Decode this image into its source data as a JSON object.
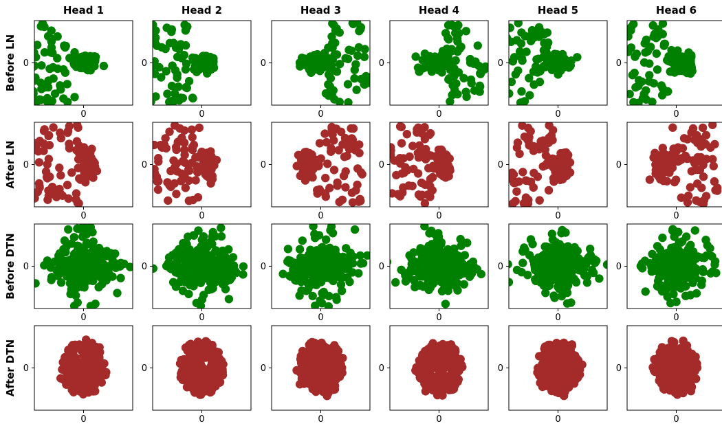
{
  "colors": {
    "green": "#008000",
    "brown": "#a52a2a"
  },
  "chart_data": {
    "type": "scatter",
    "grid": false,
    "columns": [
      "Head 1",
      "Head 2",
      "Head 3",
      "Head 4",
      "Head 5",
      "Head 6"
    ],
    "rows": [
      {
        "label": "Before LN",
        "color": "green",
        "shape": "scattered-left-dense-center",
        "xlim": [
          -1,
          1
        ],
        "ylim": [
          -1,
          1
        ],
        "xticks": [
          "0"
        ],
        "yticks": [
          "0"
        ]
      },
      {
        "label": "After LN",
        "color": "brown",
        "shape": "ring-left-dense-right",
        "xlim": [
          -1,
          1
        ],
        "ylim": [
          -1,
          1
        ],
        "xticks": [
          "0"
        ],
        "yticks": [
          "0"
        ]
      },
      {
        "label": "Before DTN",
        "color": "green",
        "shape": "wide-horizontal-cluster",
        "xlim": [
          -1,
          1
        ],
        "ylim": [
          -1,
          1
        ],
        "xticks": [
          "0"
        ],
        "yticks": [
          "0"
        ]
      },
      {
        "label": "After DTN",
        "color": "brown",
        "shape": "compact-ellipse",
        "xlim": [
          -1,
          1
        ],
        "ylim": [
          -1,
          1
        ],
        "xticks": [
          "0"
        ],
        "yticks": [
          "0"
        ]
      }
    ]
  }
}
